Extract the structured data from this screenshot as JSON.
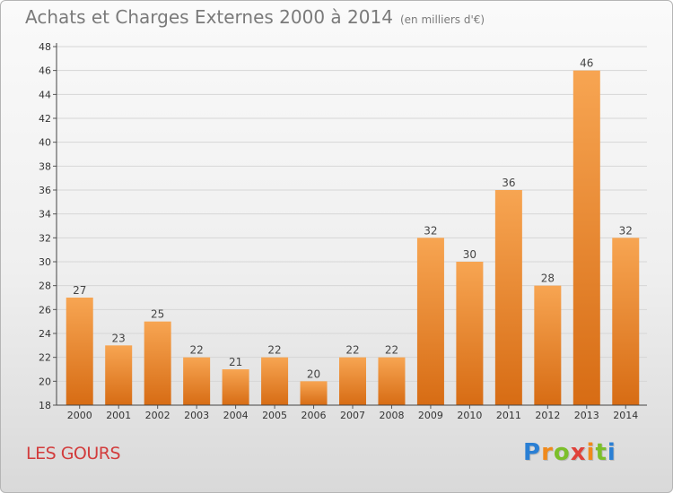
{
  "header": {
    "title": "Achats et Charges Externes 2000 à 2014",
    "unit": "(en milliers d'€)"
  },
  "footer": {
    "place": "LES GOURS",
    "logo": "Proxiti"
  },
  "colors": {
    "bar_top": "#f7a552",
    "bar_bottom": "#d76c14",
    "place_text": "#d23c3c"
  },
  "chart_data": {
    "type": "bar",
    "categories": [
      "2000",
      "2001",
      "2002",
      "2003",
      "2004",
      "2005",
      "2006",
      "2007",
      "2008",
      "2009",
      "2010",
      "2011",
      "2012",
      "2013",
      "2014"
    ],
    "values": [
      27,
      23,
      25,
      22,
      21,
      22,
      20,
      22,
      22,
      32,
      30,
      36,
      28,
      46,
      32
    ],
    "ylim": [
      18,
      48
    ],
    "yticks": [
      18,
      20,
      22,
      24,
      26,
      28,
      30,
      32,
      34,
      36,
      38,
      40,
      42,
      44,
      46,
      48
    ],
    "grid": true,
    "legend": "none",
    "data_labels": true
  }
}
